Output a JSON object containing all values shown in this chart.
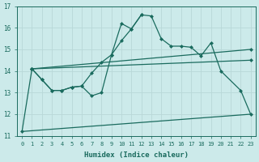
{
  "xlabel": "Humidex (Indice chaleur)",
  "bg_color": "#cceaea",
  "line_color": "#1a6b5e",
  "grid_color": "#b8d8d8",
  "xlim": [
    -0.5,
    23.5
  ],
  "ylim": [
    11,
    17
  ],
  "yticks": [
    11,
    12,
    13,
    14,
    15,
    16,
    17
  ],
  "xticks": [
    0,
    1,
    2,
    3,
    4,
    5,
    6,
    7,
    8,
    9,
    10,
    11,
    12,
    13,
    14,
    15,
    16,
    17,
    18,
    19,
    20,
    21,
    22,
    23
  ],
  "line1_x": [
    0,
    1,
    2,
    3,
    4,
    5,
    6,
    7,
    8,
    9,
    10,
    11,
    12,
    13,
    14,
    15,
    16,
    17,
    18,
    19,
    20,
    22,
    23
  ],
  "line1_y": [
    11.2,
    14.1,
    13.6,
    13.1,
    13.1,
    13.25,
    13.3,
    12.85,
    13.0,
    14.75,
    16.2,
    15.95,
    16.6,
    16.55,
    15.5,
    15.15,
    15.15,
    15.1,
    14.7,
    15.3,
    14.0,
    13.1,
    12.0
  ],
  "line2_x": [
    1,
    2,
    3,
    4,
    5,
    6,
    7,
    8,
    9,
    10,
    11,
    12
  ],
  "line2_y": [
    14.1,
    13.6,
    13.1,
    13.1,
    13.25,
    13.3,
    13.9,
    14.4,
    14.75,
    15.4,
    15.95,
    16.6
  ],
  "line3_x": [
    1,
    23
  ],
  "line3_y": [
    14.1,
    15.0
  ],
  "line4_x": [
    1,
    23
  ],
  "line4_y": [
    14.1,
    14.5
  ],
  "line5_x": [
    0,
    23
  ],
  "line5_y": [
    11.2,
    12.0
  ]
}
